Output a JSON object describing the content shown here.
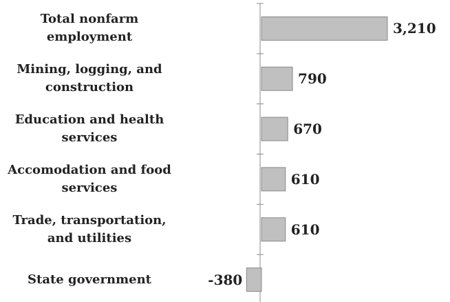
{
  "chart_data": {
    "type": "barh",
    "categories": [
      "Total nonfarm\nemployment",
      "Mining, logging, and\nconstruction",
      "Education and health\nservices",
      "Accomodation and food\nservices",
      "Trade, transportation,\nand utilities",
      "State government"
    ],
    "values": [
      3210,
      790,
      670,
      610,
      610,
      -380
    ],
    "value_labels": [
      "3,210",
      "790",
      "670",
      "610",
      "610",
      "-380"
    ],
    "color": "#c0c0c0"
  }
}
